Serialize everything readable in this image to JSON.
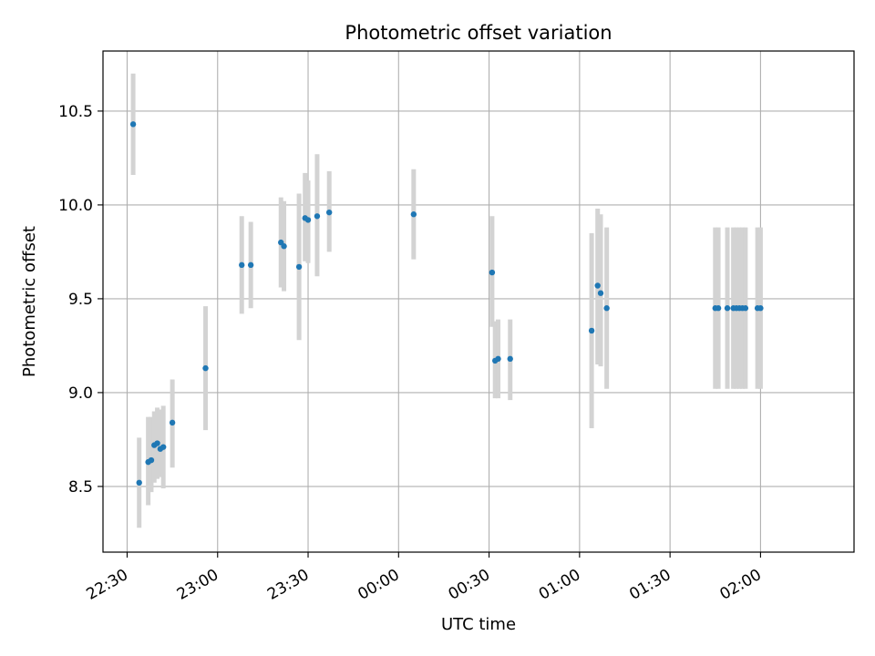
{
  "chart_data": {
    "type": "scatter",
    "title": "Photometric offset variation",
    "xlabel": "UTC time",
    "ylabel": "Photometric offset",
    "x_tick_labels": [
      "22:30",
      "23:00",
      "23:30",
      "00:00",
      "00:30",
      "01:00",
      "01:30",
      "02:00"
    ],
    "y_tick_labels": [
      "8.5",
      "9.0",
      "9.5",
      "10.0",
      "10.5"
    ],
    "x_ticks_minutes": [
      0,
      30,
      60,
      90,
      120,
      150,
      180,
      210
    ],
    "y_ticks": [
      8.5,
      9.0,
      9.5,
      10.0,
      10.5
    ],
    "xlim": [
      "22:22",
      "02:31"
    ],
    "ylim": [
      8.15,
      10.82
    ],
    "grid": true,
    "point_color": "#1f77b4",
    "errorbar_color": "#d3d3d3",
    "points": [
      {
        "t": "22:32",
        "y": 10.43,
        "lo": 10.16,
        "hi": 10.7
      },
      {
        "t": "22:34",
        "y": 8.52,
        "lo": 8.28,
        "hi": 8.76
      },
      {
        "t": "22:37",
        "y": 8.63,
        "lo": 8.4,
        "hi": 8.87
      },
      {
        "t": "22:38",
        "y": 8.64,
        "lo": 8.47,
        "hi": 8.87
      },
      {
        "t": "22:39",
        "y": 8.72,
        "lo": 8.52,
        "hi": 8.9
      },
      {
        "t": "22:40",
        "y": 8.73,
        "lo": 8.54,
        "hi": 8.92
      },
      {
        "t": "22:41",
        "y": 8.7,
        "lo": 8.55,
        "hi": 8.91
      },
      {
        "t": "22:42",
        "y": 8.71,
        "lo": 8.49,
        "hi": 8.93
      },
      {
        "t": "22:45",
        "y": 8.84,
        "lo": 8.6,
        "hi": 9.07
      },
      {
        "t": "22:56",
        "y": 9.13,
        "lo": 8.8,
        "hi": 9.46
      },
      {
        "t": "23:08",
        "y": 9.68,
        "lo": 9.42,
        "hi": 9.94
      },
      {
        "t": "23:11",
        "y": 9.68,
        "lo": 9.45,
        "hi": 9.91
      },
      {
        "t": "23:21",
        "y": 9.8,
        "lo": 9.56,
        "hi": 10.04
      },
      {
        "t": "23:22",
        "y": 9.78,
        "lo": 9.54,
        "hi": 10.02
      },
      {
        "t": "23:27",
        "y": 9.67,
        "lo": 9.28,
        "hi": 10.06
      },
      {
        "t": "23:29",
        "y": 9.93,
        "lo": 9.7,
        "hi": 10.17
      },
      {
        "t": "23:30",
        "y": 9.92,
        "lo": 9.69,
        "hi": 10.13
      },
      {
        "t": "23:33",
        "y": 9.94,
        "lo": 9.62,
        "hi": 10.27
      },
      {
        "t": "23:37",
        "y": 9.96,
        "lo": 9.75,
        "hi": 10.18
      },
      {
        "t": "00:05",
        "y": 9.95,
        "lo": 9.71,
        "hi": 10.19
      },
      {
        "t": "00:31",
        "y": 9.64,
        "lo": 9.35,
        "hi": 9.94
      },
      {
        "t": "00:32",
        "y": 9.17,
        "lo": 8.97,
        "hi": 9.38
      },
      {
        "t": "00:33",
        "y": 9.18,
        "lo": 8.97,
        "hi": 9.39
      },
      {
        "t": "00:37",
        "y": 9.18,
        "lo": 8.96,
        "hi": 9.39
      },
      {
        "t": "01:04",
        "y": 9.33,
        "lo": 8.81,
        "hi": 9.85
      },
      {
        "t": "01:06",
        "y": 9.57,
        "lo": 9.15,
        "hi": 9.98
      },
      {
        "t": "01:07",
        "y": 9.53,
        "lo": 9.14,
        "hi": 9.95
      },
      {
        "t": "01:09",
        "y": 9.45,
        "lo": 9.02,
        "hi": 9.88
      },
      {
        "t": "01:45",
        "y": 9.45,
        "lo": 9.02,
        "hi": 9.88
      },
      {
        "t": "01:46",
        "y": 9.45,
        "lo": 9.02,
        "hi": 9.88
      },
      {
        "t": "01:49",
        "y": 9.45,
        "lo": 9.02,
        "hi": 9.88
      },
      {
        "t": "01:51",
        "y": 9.45,
        "lo": 9.02,
        "hi": 9.88
      },
      {
        "t": "01:52",
        "y": 9.45,
        "lo": 9.02,
        "hi": 9.88
      },
      {
        "t": "01:53",
        "y": 9.45,
        "lo": 9.02,
        "hi": 9.88
      },
      {
        "t": "01:54",
        "y": 9.45,
        "lo": 9.02,
        "hi": 9.88
      },
      {
        "t": "01:55",
        "y": 9.45,
        "lo": 9.02,
        "hi": 9.88
      },
      {
        "t": "01:59",
        "y": 9.45,
        "lo": 9.02,
        "hi": 9.88
      },
      {
        "t": "02:00",
        "y": 9.45,
        "lo": 9.02,
        "hi": 9.88
      }
    ]
  }
}
